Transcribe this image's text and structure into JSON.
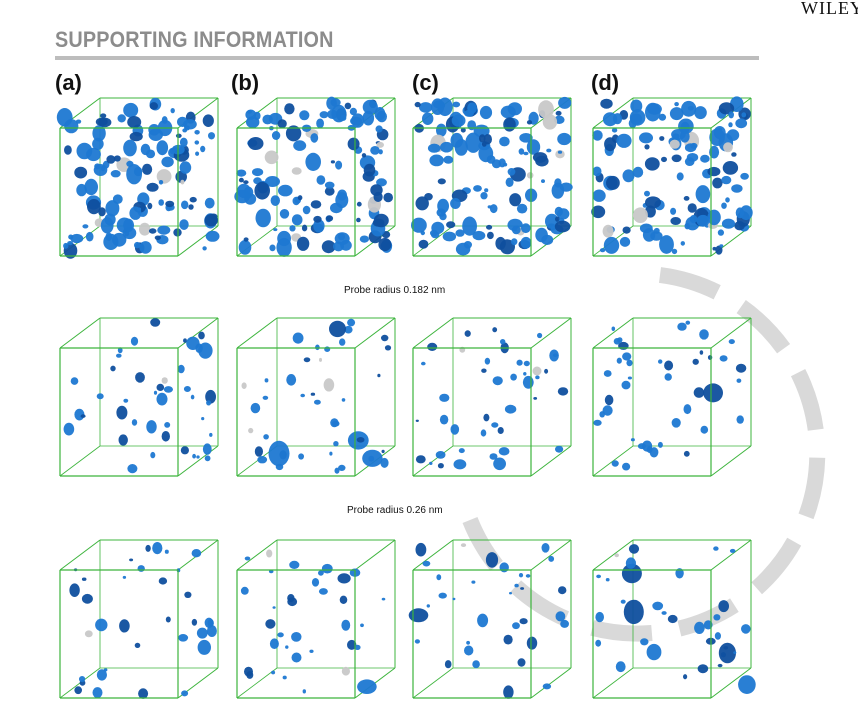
{
  "header": {
    "publisher": "WILEY",
    "section_title": "SUPPORTING INFORMATION"
  },
  "panels": [
    "(a)",
    "(b)",
    "(c)",
    "(d)"
  ],
  "captions": [
    "Probe radius 0.182 nm",
    "Probe radius 0.26 nm"
  ],
  "colors": {
    "box_edge": "#3cb43c",
    "void_blob": "#1e78d2",
    "void_blob_dark": "#0f4f9e",
    "void_blob_gray": "#c8c8c8",
    "rule": "#bdbdbd",
    "arc_watermark": "#d9d9d9"
  },
  "figure": {
    "rows": 3,
    "columns": 4,
    "row_density": [
      "high",
      "medium",
      "low"
    ]
  }
}
